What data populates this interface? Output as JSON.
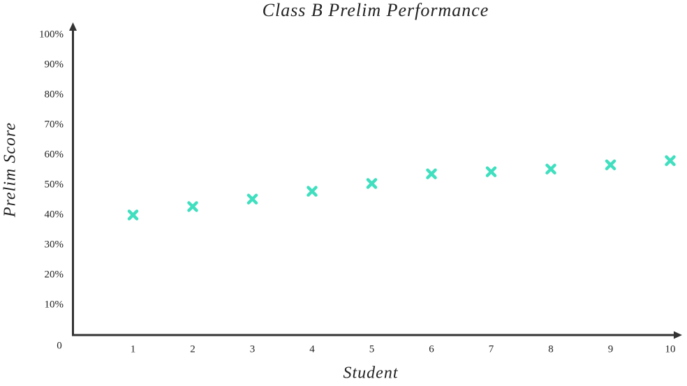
{
  "chart_data": {
    "type": "scatter",
    "title": "Class B Prelim Performance",
    "x_label": "Student",
    "y_label": "Prelim Score",
    "x": [
      1,
      2,
      3,
      4,
      5,
      6,
      7,
      8,
      9,
      10
    ],
    "series": [
      {
        "color": "#40dfbf",
        "values": [
          40.0,
          42.8,
          45.3,
          47.9,
          50.5,
          53.7,
          54.4,
          55.3,
          56.7,
          58.1
        ]
      }
    ],
    "xlim": [
      0,
      10
    ],
    "xticks": [
      1,
      2,
      3,
      4,
      5,
      6,
      7,
      8,
      9,
      10
    ],
    "ylim": [
      0,
      100
    ],
    "yticks": [
      0,
      {
        "value": 10,
        "label": "10%"
      },
      {
        "value": 20,
        "label": "20%"
      },
      {
        "value": 30,
        "label": "30%"
      },
      {
        "value": 40,
        "label": "40%"
      },
      {
        "value": 50,
        "label": "50%"
      },
      {
        "value": 60,
        "label": "60%"
      },
      {
        "value": 70,
        "label": "70%"
      },
      {
        "value": 80,
        "label": "80%"
      },
      {
        "value": 90,
        "label": "90%"
      },
      {
        "value": 100,
        "label": "100%"
      }
    ],
    "grid": false,
    "marker": "x"
  }
}
